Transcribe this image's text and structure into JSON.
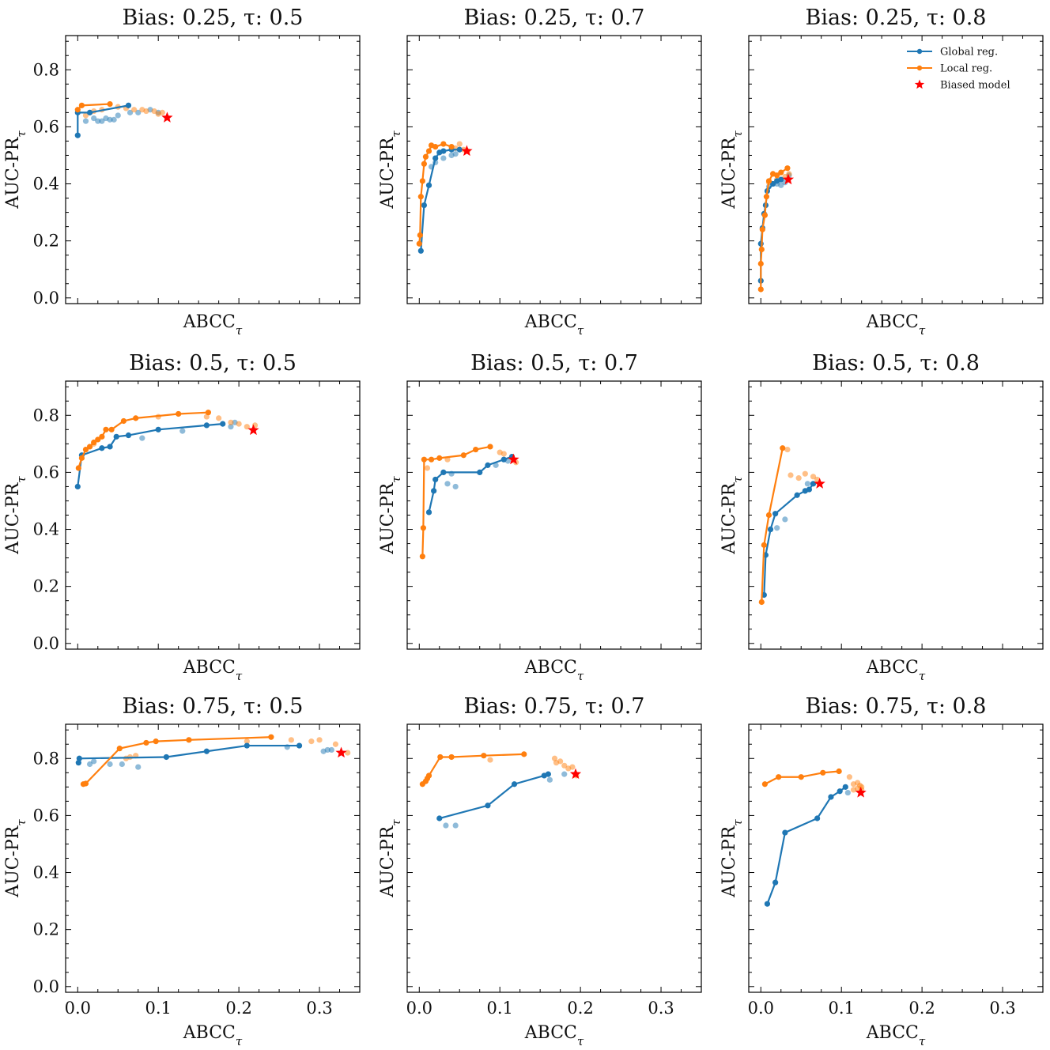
{
  "figure": {
    "x_label": "ABCC",
    "y_label": "AUC-PR",
    "subscript": "τ",
    "x_ticks": [
      "0.0",
      "0.1",
      "0.2",
      "0.3"
    ],
    "y_ticks": [
      "0.0",
      "0.2",
      "0.4",
      "0.6",
      "0.8"
    ],
    "legend": {
      "global": "Global reg.",
      "local": "Local reg.",
      "biased": "Biased model"
    },
    "colors": {
      "global": "#1f77b4",
      "local": "#ff7f0e",
      "biased": "#ff0000"
    }
  },
  "chart_data": [
    {
      "type": "line",
      "title": "Bias: 0.25, τ: 0.5",
      "bias": "0.25",
      "tau": "0.5",
      "xlim": [
        -0.015,
        0.35
      ],
      "ylim": [
        -0.02,
        0.92
      ],
      "global_line": [
        [
          0.0,
          0.57
        ],
        [
          0.0,
          0.65
        ],
        [
          0.015,
          0.65
        ],
        [
          0.063,
          0.675
        ]
      ],
      "global_faded": [
        [
          0.01,
          0.62
        ],
        [
          0.02,
          0.63
        ],
        [
          0.025,
          0.62
        ],
        [
          0.03,
          0.62
        ],
        [
          0.035,
          0.63
        ],
        [
          0.04,
          0.625
        ],
        [
          0.045,
          0.625
        ],
        [
          0.05,
          0.64
        ],
        [
          0.065,
          0.65
        ],
        [
          0.075,
          0.65
        ],
        [
          0.09,
          0.66
        ],
        [
          0.1,
          0.65
        ]
      ],
      "local_line": [
        [
          0.0,
          0.66
        ],
        [
          0.005,
          0.675
        ],
        [
          0.04,
          0.68
        ]
      ],
      "local_faded": [
        [
          0.01,
          0.64
        ],
        [
          0.015,
          0.65
        ],
        [
          0.02,
          0.655
        ],
        [
          0.03,
          0.66
        ],
        [
          0.05,
          0.67
        ],
        [
          0.06,
          0.665
        ],
        [
          0.07,
          0.66
        ],
        [
          0.08,
          0.66
        ],
        [
          0.085,
          0.655
        ],
        [
          0.095,
          0.655
        ],
        [
          0.1,
          0.645
        ],
        [
          0.105,
          0.65
        ]
      ],
      "biased": [
        0.111,
        0.632
      ]
    },
    {
      "type": "line",
      "title": "Bias: 0.25, τ: 0.7",
      "bias": "0.25",
      "tau": "0.7",
      "xlim": [
        -0.015,
        0.35
      ],
      "ylim": [
        -0.02,
        0.92
      ],
      "global_line": [
        [
          0.002,
          0.165
        ],
        [
          0.006,
          0.325
        ],
        [
          0.012,
          0.395
        ],
        [
          0.02,
          0.49
        ],
        [
          0.025,
          0.51
        ],
        [
          0.03,
          0.515
        ],
        [
          0.04,
          0.52
        ],
        [
          0.05,
          0.52
        ]
      ],
      "global_faded": [
        [
          0.015,
          0.46
        ],
        [
          0.02,
          0.475
        ],
        [
          0.03,
          0.49
        ],
        [
          0.04,
          0.5
        ],
        [
          0.045,
          0.505
        ]
      ],
      "local_line": [
        [
          0.0,
          0.19
        ],
        [
          0.001,
          0.22
        ],
        [
          0.002,
          0.355
        ],
        [
          0.004,
          0.41
        ],
        [
          0.006,
          0.47
        ],
        [
          0.008,
          0.495
        ],
        [
          0.012,
          0.515
        ],
        [
          0.015,
          0.535
        ],
        [
          0.02,
          0.53
        ],
        [
          0.03,
          0.54
        ],
        [
          0.04,
          0.53
        ]
      ],
      "local_faded": [
        [
          0.045,
          0.525
        ],
        [
          0.05,
          0.54
        ],
        [
          0.055,
          0.52
        ],
        [
          0.06,
          0.515
        ]
      ],
      "biased": [
        0.059,
        0.515
      ]
    },
    {
      "type": "line",
      "title": "Bias: 0.25, τ: 0.8",
      "bias": "0.25",
      "tau": "0.8",
      "xlim": [
        -0.015,
        0.35
      ],
      "ylim": [
        -0.02,
        0.92
      ],
      "global_line": [
        [
          0.0,
          0.06
        ],
        [
          0.0,
          0.19
        ],
        [
          0.002,
          0.245
        ],
        [
          0.004,
          0.295
        ],
        [
          0.006,
          0.325
        ],
        [
          0.008,
          0.375
        ],
        [
          0.015,
          0.4
        ],
        [
          0.02,
          0.41
        ],
        [
          0.025,
          0.415
        ]
      ],
      "global_faded": [
        [
          0.01,
          0.39
        ],
        [
          0.02,
          0.4
        ],
        [
          0.025,
          0.395
        ],
        [
          0.03,
          0.405
        ],
        [
          0.035,
          0.43
        ]
      ],
      "local_line": [
        [
          0.0,
          0.03
        ],
        [
          0.0,
          0.12
        ],
        [
          0.001,
          0.17
        ],
        [
          0.002,
          0.24
        ],
        [
          0.005,
          0.29
        ],
        [
          0.007,
          0.355
        ],
        [
          0.01,
          0.41
        ],
        [
          0.015,
          0.435
        ],
        [
          0.02,
          0.43
        ],
        [
          0.025,
          0.44
        ],
        [
          0.033,
          0.455
        ]
      ],
      "local_faded": [
        [
          0.01,
          0.405
        ],
        [
          0.02,
          0.415
        ],
        [
          0.03,
          0.425
        ],
        [
          0.035,
          0.435
        ]
      ],
      "biased": [
        0.034,
        0.415
      ]
    },
    {
      "type": "line",
      "title": "Bias: 0.5, τ: 0.5",
      "bias": "0.5",
      "tau": "0.5",
      "xlim": [
        -0.015,
        0.35
      ],
      "ylim": [
        -0.02,
        0.92
      ],
      "global_line": [
        [
          0.0,
          0.55
        ],
        [
          0.005,
          0.66
        ],
        [
          0.03,
          0.685
        ],
        [
          0.04,
          0.69
        ],
        [
          0.048,
          0.725
        ],
        [
          0.063,
          0.73
        ],
        [
          0.1,
          0.75
        ],
        [
          0.16,
          0.765
        ],
        [
          0.18,
          0.77
        ]
      ],
      "global_faded": [
        [
          0.08,
          0.72
        ],
        [
          0.13,
          0.745
        ],
        [
          0.19,
          0.76
        ],
        [
          0.195,
          0.775
        ]
      ],
      "local_line": [
        [
          0.001,
          0.615
        ],
        [
          0.005,
          0.65
        ],
        [
          0.01,
          0.68
        ],
        [
          0.015,
          0.69
        ],
        [
          0.02,
          0.705
        ],
        [
          0.025,
          0.715
        ],
        [
          0.03,
          0.725
        ],
        [
          0.035,
          0.75
        ],
        [
          0.042,
          0.75
        ],
        [
          0.057,
          0.78
        ],
        [
          0.072,
          0.79
        ],
        [
          0.125,
          0.805
        ],
        [
          0.162,
          0.81
        ]
      ],
      "local_faded": [
        [
          0.02,
          0.7
        ],
        [
          0.1,
          0.795
        ],
        [
          0.16,
          0.795
        ],
        [
          0.175,
          0.79
        ],
        [
          0.19,
          0.775
        ],
        [
          0.2,
          0.77
        ],
        [
          0.21,
          0.76
        ],
        [
          0.22,
          0.765
        ]
      ],
      "biased": [
        0.218,
        0.748
      ]
    },
    {
      "type": "line",
      "title": "Bias: 0.5, τ: 0.7",
      "bias": "0.5",
      "tau": "0.7",
      "xlim": [
        -0.015,
        0.35
      ],
      "ylim": [
        -0.02,
        0.92
      ],
      "global_line": [
        [
          0.012,
          0.46
        ],
        [
          0.018,
          0.535
        ],
        [
          0.02,
          0.575
        ],
        [
          0.03,
          0.6
        ],
        [
          0.075,
          0.6
        ],
        [
          0.085,
          0.625
        ],
        [
          0.105,
          0.645
        ],
        [
          0.115,
          0.655
        ]
      ],
      "global_faded": [
        [
          0.035,
          0.56
        ],
        [
          0.045,
          0.55
        ],
        [
          0.04,
          0.595
        ],
        [
          0.095,
          0.625
        ],
        [
          0.11,
          0.64
        ]
      ],
      "local_line": [
        [
          0.004,
          0.305
        ],
        [
          0.005,
          0.405
        ],
        [
          0.006,
          0.645
        ],
        [
          0.015,
          0.645
        ],
        [
          0.025,
          0.65
        ],
        [
          0.055,
          0.66
        ],
        [
          0.07,
          0.68
        ],
        [
          0.088,
          0.69
        ]
      ],
      "local_faded": [
        [
          0.01,
          0.615
        ],
        [
          0.035,
          0.645
        ],
        [
          0.1,
          0.67
        ],
        [
          0.105,
          0.665
        ],
        [
          0.115,
          0.655
        ],
        [
          0.12,
          0.635
        ]
      ],
      "biased": [
        0.117,
        0.645
      ]
    },
    {
      "type": "line",
      "title": "Bias: 0.5, τ: 0.8",
      "bias": "0.5",
      "tau": "0.8",
      "xlim": [
        -0.015,
        0.35
      ],
      "ylim": [
        -0.02,
        0.92
      ],
      "global_line": [
        [
          0.004,
          0.17
        ],
        [
          0.006,
          0.31
        ],
        [
          0.012,
          0.4
        ],
        [
          0.018,
          0.455
        ],
        [
          0.045,
          0.52
        ],
        [
          0.055,
          0.535
        ],
        [
          0.06,
          0.54
        ],
        [
          0.065,
          0.56
        ]
      ],
      "global_faded": [
        [
          0.02,
          0.405
        ],
        [
          0.03,
          0.435
        ],
        [
          0.058,
          0.56
        ]
      ],
      "local_line": [
        [
          0.001,
          0.145
        ],
        [
          0.004,
          0.345
        ],
        [
          0.01,
          0.45
        ],
        [
          0.027,
          0.685
        ]
      ],
      "local_faded": [
        [
          0.033,
          0.68
        ],
        [
          0.037,
          0.59
        ],
        [
          0.047,
          0.58
        ],
        [
          0.055,
          0.595
        ],
        [
          0.065,
          0.585
        ],
        [
          0.07,
          0.575
        ]
      ],
      "biased": [
        0.073,
        0.56
      ]
    },
    {
      "type": "line",
      "title": "Bias: 0.75, τ: 0.5",
      "bias": "0.75",
      "tau": "0.5",
      "xlim": [
        -0.015,
        0.35
      ],
      "ylim": [
        -0.02,
        0.92
      ],
      "global_line": [
        [
          0.001,
          0.785
        ],
        [
          0.002,
          0.8
        ],
        [
          0.11,
          0.805
        ],
        [
          0.16,
          0.825
        ],
        [
          0.21,
          0.845
        ],
        [
          0.275,
          0.845
        ]
      ],
      "global_faded": [
        [
          0.015,
          0.78
        ],
        [
          0.02,
          0.79
        ],
        [
          0.04,
          0.78
        ],
        [
          0.055,
          0.78
        ],
        [
          0.075,
          0.77
        ],
        [
          0.26,
          0.84
        ],
        [
          0.305,
          0.825
        ],
        [
          0.31,
          0.83
        ],
        [
          0.315,
          0.83
        ]
      ],
      "local_line": [
        [
          0.007,
          0.71
        ],
        [
          0.01,
          0.712
        ],
        [
          0.052,
          0.835
        ],
        [
          0.085,
          0.855
        ],
        [
          0.097,
          0.86
        ],
        [
          0.138,
          0.865
        ],
        [
          0.24,
          0.875
        ]
      ],
      "local_faded": [
        [
          0.06,
          0.8
        ],
        [
          0.065,
          0.805
        ],
        [
          0.072,
          0.81
        ],
        [
          0.21,
          0.86
        ],
        [
          0.265,
          0.865
        ],
        [
          0.29,
          0.86
        ],
        [
          0.3,
          0.865
        ],
        [
          0.32,
          0.85
        ],
        [
          0.335,
          0.82
        ]
      ],
      "biased": [
        0.327,
        0.82
      ]
    },
    {
      "type": "line",
      "title": "Bias: 0.75, τ: 0.7",
      "bias": "0.75",
      "tau": "0.7",
      "xlim": [
        -0.015,
        0.35
      ],
      "ylim": [
        -0.02,
        0.92
      ],
      "global_line": [
        [
          0.025,
          0.59
        ],
        [
          0.085,
          0.635
        ],
        [
          0.118,
          0.71
        ],
        [
          0.155,
          0.74
        ],
        [
          0.16,
          0.745
        ]
      ],
      "global_faded": [
        [
          0.033,
          0.565
        ],
        [
          0.045,
          0.565
        ],
        [
          0.162,
          0.725
        ],
        [
          0.18,
          0.745
        ]
      ],
      "local_line": [
        [
          0.004,
          0.71
        ],
        [
          0.008,
          0.72
        ],
        [
          0.01,
          0.73
        ],
        [
          0.012,
          0.74
        ],
        [
          0.026,
          0.805
        ],
        [
          0.04,
          0.805
        ],
        [
          0.08,
          0.81
        ],
        [
          0.13,
          0.815
        ]
      ],
      "local_faded": [
        [
          0.088,
          0.795
        ],
        [
          0.168,
          0.8
        ],
        [
          0.17,
          0.785
        ],
        [
          0.175,
          0.79
        ],
        [
          0.18,
          0.775
        ],
        [
          0.185,
          0.765
        ],
        [
          0.19,
          0.77
        ],
        [
          0.195,
          0.74
        ]
      ],
      "biased": [
        0.194,
        0.745
      ]
    },
    {
      "type": "line",
      "title": "Bias: 0.75, τ: 0.8",
      "bias": "0.75",
      "tau": "0.8",
      "xlim": [
        -0.015,
        0.35
      ],
      "ylim": [
        -0.02,
        0.92
      ],
      "global_line": [
        [
          0.008,
          0.29
        ],
        [
          0.018,
          0.365
        ],
        [
          0.03,
          0.54
        ],
        [
          0.07,
          0.59
        ],
        [
          0.087,
          0.665
        ],
        [
          0.098,
          0.685
        ],
        [
          0.105,
          0.7
        ]
      ],
      "global_faded": [
        [
          0.108,
          0.68
        ]
      ],
      "local_line": [
        [
          0.005,
          0.71
        ],
        [
          0.022,
          0.735
        ],
        [
          0.05,
          0.735
        ],
        [
          0.077,
          0.75
        ],
        [
          0.097,
          0.755
        ]
      ],
      "local_faded": [
        [
          0.11,
          0.735
        ],
        [
          0.115,
          0.71
        ],
        [
          0.12,
          0.715
        ],
        [
          0.123,
          0.705
        ],
        [
          0.125,
          0.7
        ],
        [
          0.12,
          0.695
        ],
        [
          0.115,
          0.69
        ],
        [
          0.125,
          0.69
        ]
      ],
      "biased": [
        0.124,
        0.68
      ]
    }
  ]
}
